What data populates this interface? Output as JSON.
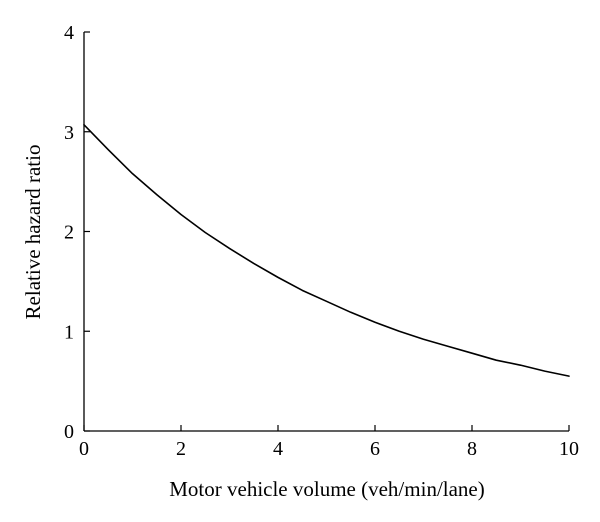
{
  "chart_data": {
    "type": "line",
    "title": "",
    "xlabel": "Motor vehicle volume (veh/min/lane)",
    "ylabel": "Relative hazard ratio",
    "xlim": [
      0,
      10
    ],
    "ylim": [
      0,
      4
    ],
    "x_ticks": [
      0,
      2,
      4,
      6,
      8,
      10
    ],
    "y_ticks": [
      0,
      1,
      2,
      3,
      4
    ],
    "x_tick_labels": [
      "0",
      "2",
      "4",
      "6",
      "8",
      "10"
    ],
    "y_tick_labels": [
      "0",
      "1",
      "2",
      "3",
      "4"
    ],
    "grid": false,
    "legend": "none",
    "series": [
      {
        "color": "#000000",
        "x": [
          0,
          0.5,
          1,
          1.5,
          2,
          2.5,
          3,
          3.5,
          4,
          4.5,
          5,
          5.5,
          6,
          6.5,
          7,
          7.5,
          8,
          8.5,
          9,
          9.5,
          10
        ],
        "y": [
          3.07,
          2.82,
          2.58,
          2.37,
          2.17,
          1.99,
          1.83,
          1.68,
          1.54,
          1.41,
          1.3,
          1.19,
          1.09,
          1.0,
          0.92,
          0.85,
          0.78,
          0.71,
          0.66,
          0.6,
          0.55
        ]
      }
    ]
  }
}
